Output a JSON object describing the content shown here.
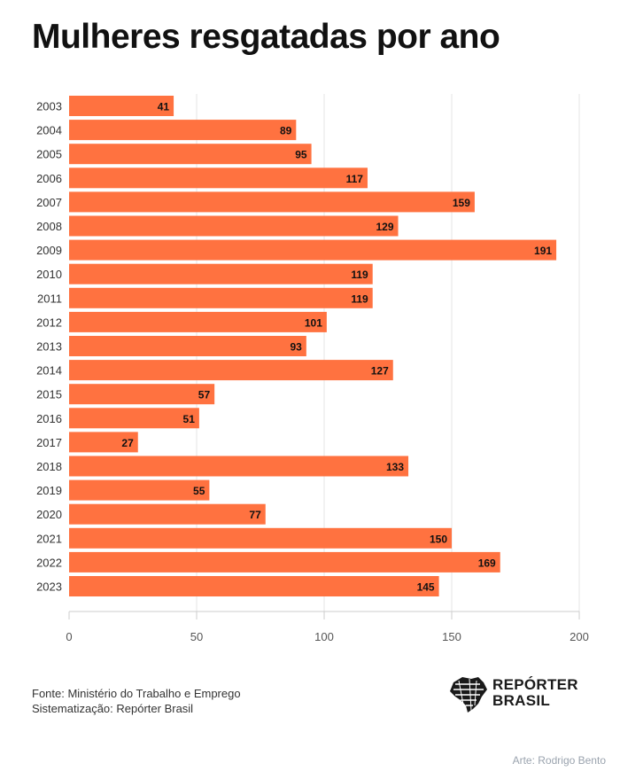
{
  "title": "Mulheres resgatadas por ano",
  "source": {
    "line1": "Fonte: Ministério do Trabalho e Emprego",
    "line2": "Sistematização: Repórter Brasil"
  },
  "logo": {
    "line1": "REPÓRTER",
    "line2": "BRASIL",
    "icon": "brazil-map-icon"
  },
  "credit": "Arte: Rodrigo Bento",
  "colors": {
    "bar": "#ff7240",
    "grid": "#e6e6e6",
    "axis": "#cccccc",
    "label": "#333333"
  },
  "chart_data": {
    "type": "bar",
    "orientation": "horizontal",
    "title": "Mulheres resgatadas por ano",
    "categories": [
      "2003",
      "2004",
      "2005",
      "2006",
      "2007",
      "2008",
      "2009",
      "2010",
      "2011",
      "2012",
      "2013",
      "2014",
      "2015",
      "2016",
      "2017",
      "2018",
      "2019",
      "2020",
      "2021",
      "2022",
      "2023"
    ],
    "values": [
      41,
      89,
      95,
      117,
      159,
      129,
      191,
      119,
      119,
      101,
      93,
      127,
      57,
      51,
      27,
      133,
      55,
      77,
      150,
      169,
      145
    ],
    "xlim": [
      0,
      200
    ],
    "xticks": [
      0,
      50,
      100,
      150,
      200
    ],
    "grid": true,
    "data_labels": true
  }
}
